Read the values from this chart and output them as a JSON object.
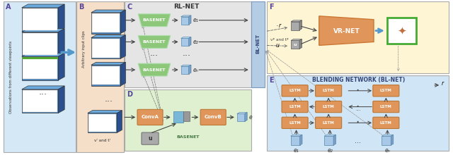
{
  "bg_A": "#d4e8f5",
  "bg_B": "#f5dfc8",
  "bg_C": "#e5e5e5",
  "bg_D": "#dff0d0",
  "bg_E": "#d0e5f5",
  "bg_F": "#fef5d5",
  "color_basenet": "#8dc87a",
  "color_convA": "#e0955a",
  "color_lstm": "#e0955a",
  "color_vrnet": "#e0955a",
  "color_cube_front": "#4a80b8",
  "color_cube_side": "#2a5090",
  "color_cube_top": "#6aaade",
  "color_embed_front": "#a8c8e8",
  "color_embed_side": "#7a9ec8",
  "color_embed_top": "#c8e0f5",
  "color_gray_cube": "#aaaaaa",
  "color_gray_side": "#888888",
  "color_gray_top": "#cccccc",
  "color_blnet_bar": "#b5cce5",
  "color_u_box": "#aaaaaa",
  "label_A": "A",
  "label_B": "B",
  "label_C": "C",
  "label_D": "D",
  "label_E": "E",
  "label_F": "F",
  "text_rlnet": "RL-NET",
  "text_blnet": "BL-NET",
  "text_blending": "BLENDING NETWORK (BL-NET)",
  "text_vrnet": "VR-NET",
  "text_basenet": "BASENET",
  "text_conva": "ConvA",
  "text_convb": "ConvB",
  "text_obs": "Observations from different viewpoints",
  "text_arb": "Arbitrary input clips",
  "text_vi": "vⁱ and tⁱ",
  "text_vq": "vᵠ and tᵠ",
  "text_u": "u",
  "text_r": "r",
  "text_e1": "e₁",
  "text_e2": "e₂",
  "text_en": "eₙ",
  "text_e": "e",
  "text_lstm": "LSTM",
  "green_stripe_color": "#55aa33"
}
